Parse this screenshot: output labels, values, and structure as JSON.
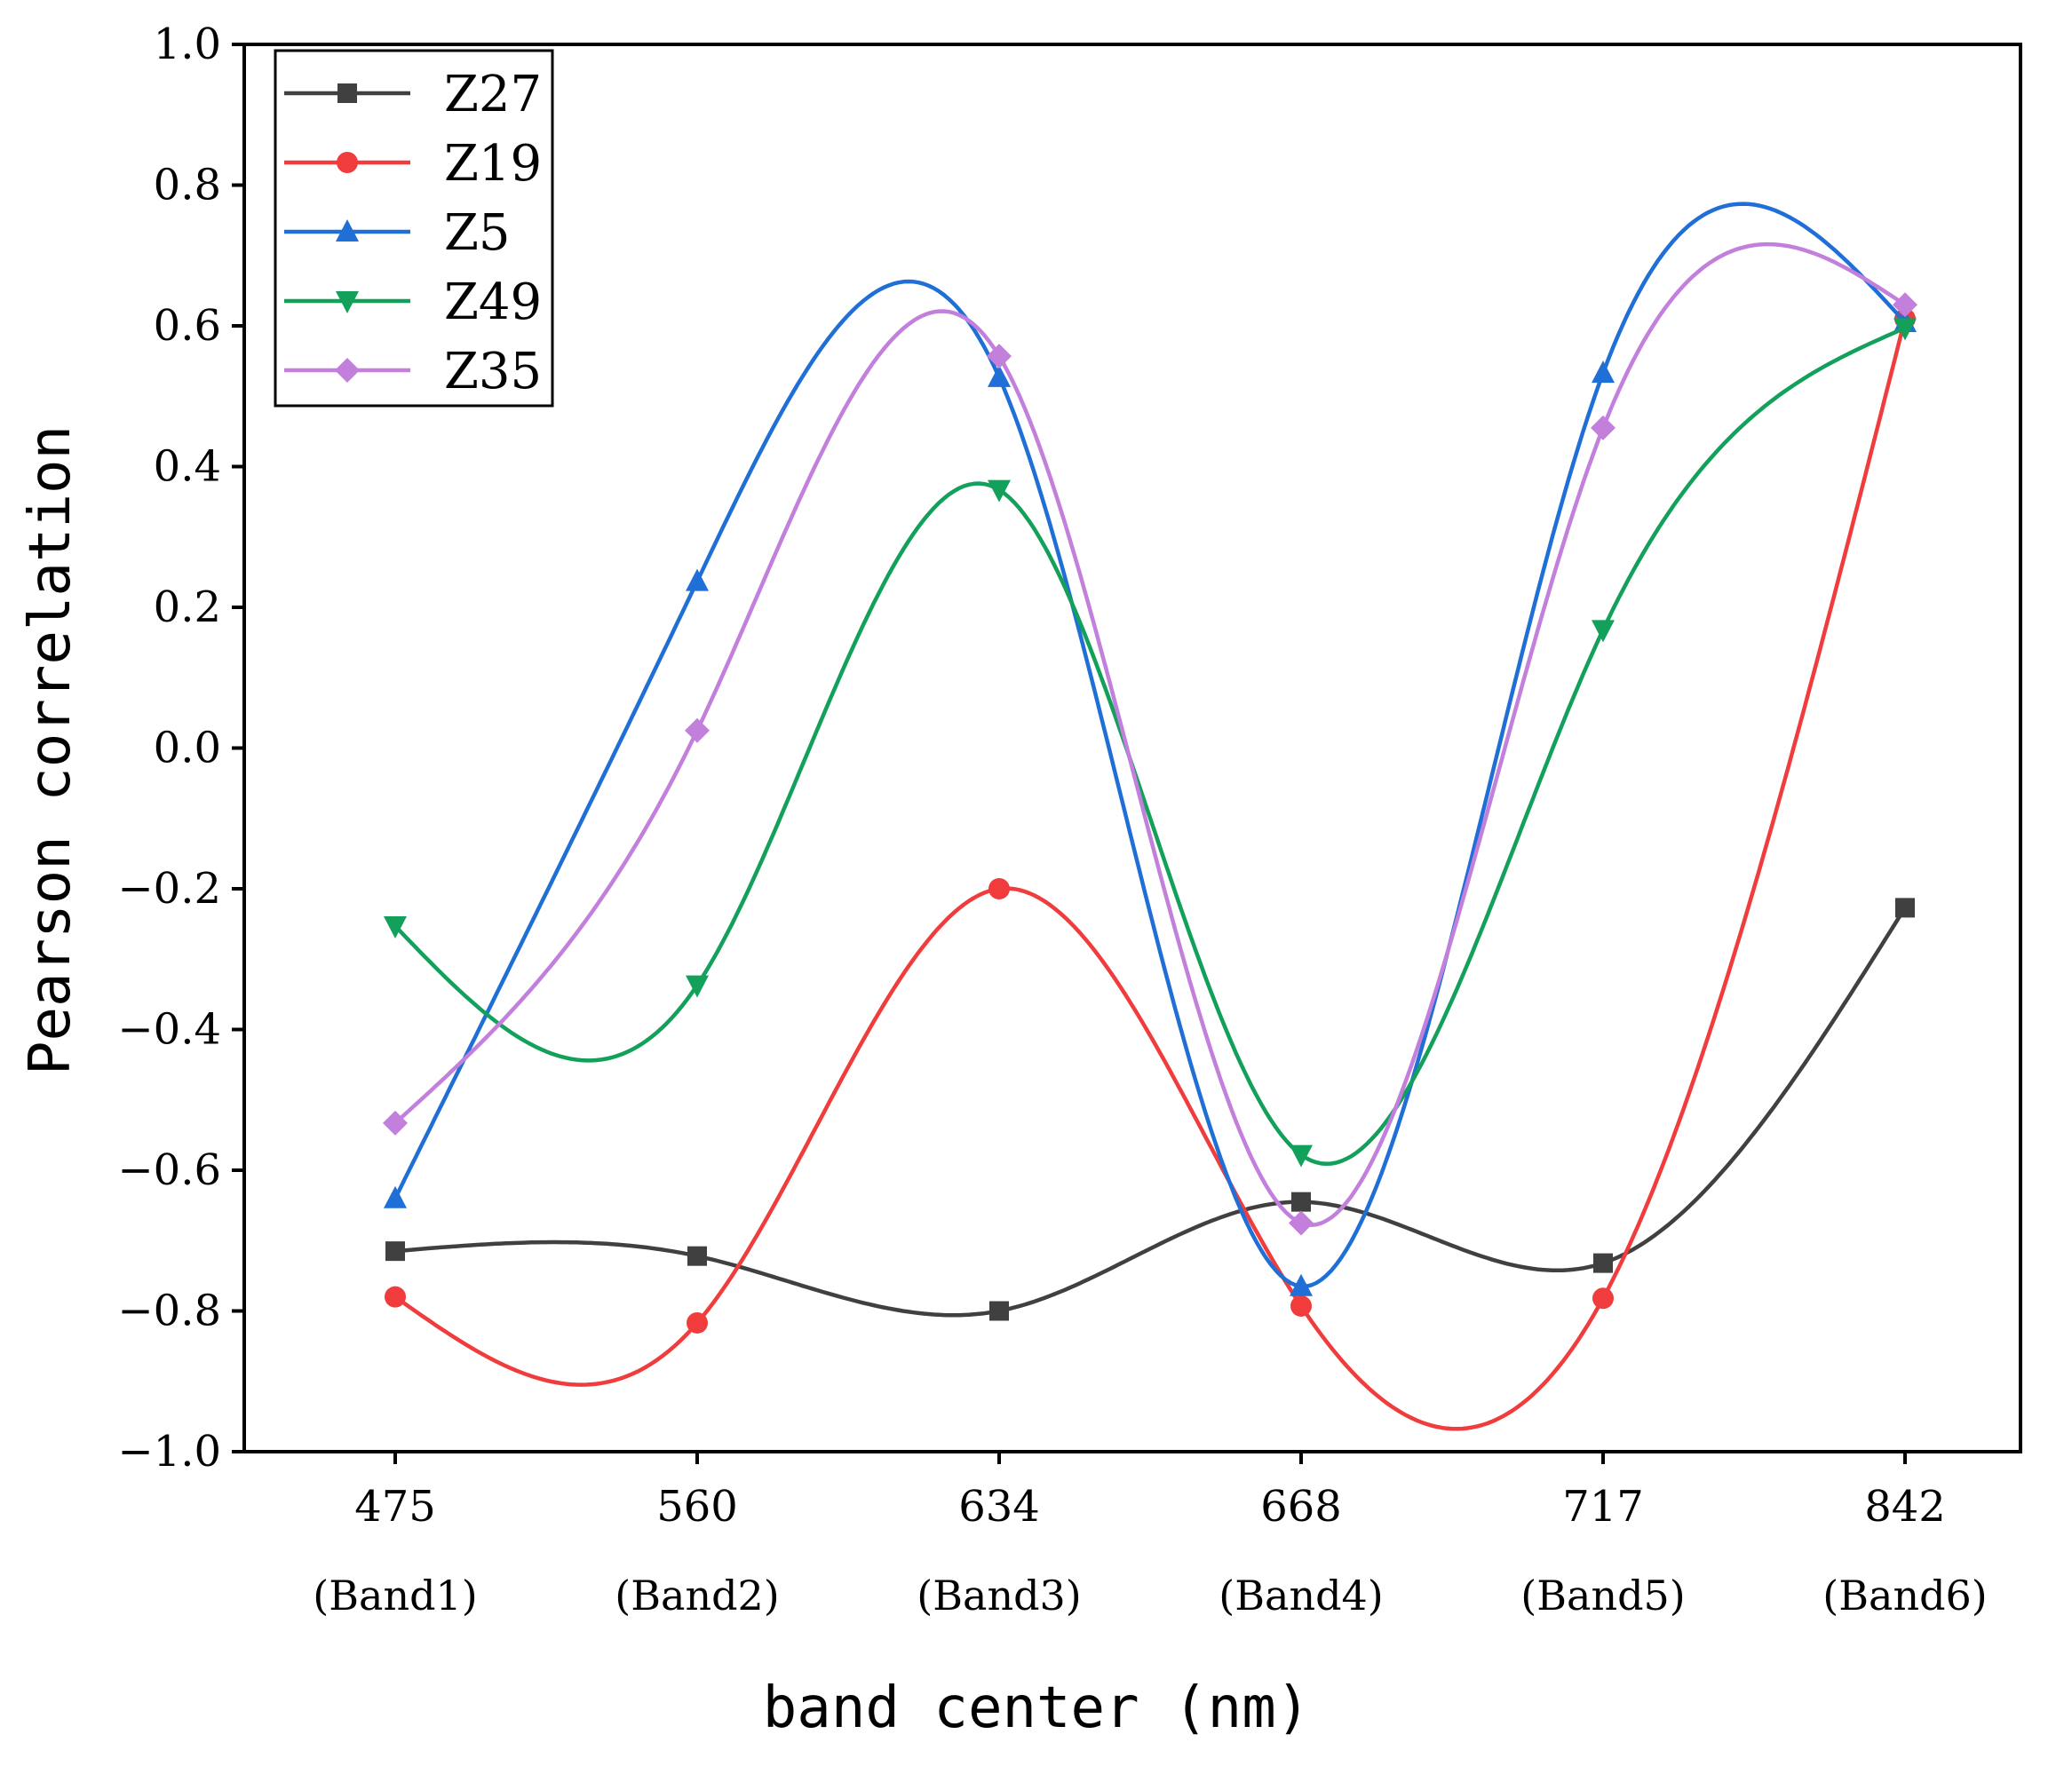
{
  "chart_data": {
    "type": "line",
    "title": "",
    "xlabel": "band center (nm)",
    "ylabel": "Pearson correlation",
    "categories": [
      "475",
      "560",
      "634",
      "668",
      "717",
      "842"
    ],
    "category_sublabels": [
      "(Band1)",
      "(Band2)",
      "(Band3)",
      "(Band4)",
      "(Band5)",
      "(Band6)"
    ],
    "ylim": [
      -1.0,
      1.0
    ],
    "yticks": [
      -1.0,
      -0.8,
      -0.6,
      -0.4,
      -0.2,
      0.0,
      0.2,
      0.4,
      0.6,
      0.8,
      1.0
    ],
    "ytick_labels": [
      "−1.0",
      "−0.8",
      "−0.6",
      "−0.4",
      "−0.2",
      "0.0",
      "0.2",
      "0.4",
      "0.6",
      "0.8",
      "1.0"
    ],
    "legend_position": "top-left",
    "grid": false,
    "series": [
      {
        "name": "Z27",
        "color": "#404040",
        "marker": "square",
        "values": [
          -0.715,
          -0.722,
          -0.8,
          -0.645,
          -0.732,
          -0.227
        ]
      },
      {
        "name": "Z19",
        "color": "#f03c3c",
        "marker": "circle",
        "values": [
          -0.78,
          -0.817,
          -0.2,
          -0.793,
          -0.782,
          0.61
        ]
      },
      {
        "name": "Z5",
        "color": "#1f6fd6",
        "marker": "triangle-up",
        "values": [
          -0.64,
          0.237,
          0.527,
          -0.765,
          0.533,
          0.605
        ]
      },
      {
        "name": "Z49",
        "color": "#12a05a",
        "marker": "triangle-down",
        "values": [
          -0.253,
          -0.337,
          0.367,
          -0.578,
          0.168,
          0.597
        ]
      },
      {
        "name": "Z35",
        "color": "#c27fdc",
        "marker": "diamond",
        "values": [
          -0.533,
          0.025,
          0.557,
          -0.675,
          0.455,
          0.63
        ]
      }
    ]
  }
}
